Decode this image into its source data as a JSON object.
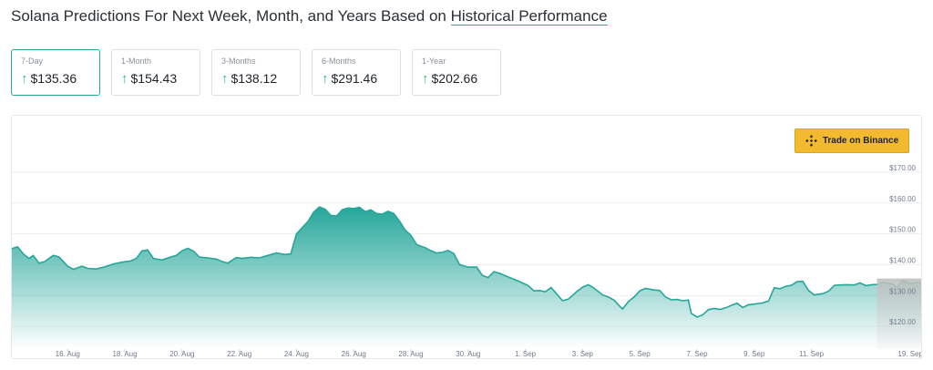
{
  "page": {
    "title_prefix": "Solana Predictions For Next Week, Month, and Years Based on ",
    "title_link": "Historical Performance"
  },
  "cards": [
    {
      "label": "7-Day",
      "value": "$135.36",
      "active": true
    },
    {
      "label": "1-Month",
      "value": "$154.43",
      "active": false
    },
    {
      "label": "3-Months",
      "value": "$138.12",
      "active": false
    },
    {
      "label": "6-Months",
      "value": "$291.46",
      "active": false
    },
    {
      "label": "1-Year",
      "value": "$202.66",
      "active": false
    }
  ],
  "trade_button": {
    "label": "Trade on Binance",
    "icon": "binance-logo-icon"
  },
  "colors": {
    "accent": "#2aa597",
    "up_arrow": "#2ebd85",
    "binance_yellow": "#f3ba2f"
  },
  "chart_data": {
    "type": "area",
    "ylim": [
      115,
      175
    ],
    "y_ticks": [
      120,
      130,
      140,
      150,
      160,
      170
    ],
    "y_tick_labels": [
      "$120.00",
      "$130.00",
      "$140.00",
      "$150.00",
      "$160.00",
      "$170.00"
    ],
    "x_ticks": [
      {
        "d": 2,
        "label": "16. Aug"
      },
      {
        "d": 4,
        "label": "18. Aug"
      },
      {
        "d": 6,
        "label": "20. Aug"
      },
      {
        "d": 8,
        "label": "22. Aug"
      },
      {
        "d": 10,
        "label": "24. Aug"
      },
      {
        "d": 12,
        "label": "26. Aug"
      },
      {
        "d": 14,
        "label": "28. Aug"
      },
      {
        "d": 16,
        "label": "30. Aug"
      },
      {
        "d": 18,
        "label": "1. Sep"
      },
      {
        "d": 20,
        "label": "3. Sep"
      },
      {
        "d": 22,
        "label": "5. Sep"
      },
      {
        "d": 24,
        "label": "7. Sep"
      },
      {
        "d": 26,
        "label": "9. Sep"
      },
      {
        "d": 28,
        "label": "11. Sep"
      },
      {
        "d": 31.9,
        "label": "19. Sep"
      }
    ],
    "x_range": [
      0.05,
      31.9
    ],
    "forecast_start": 31.5,
    "series": [
      {
        "values": [
          [
            0.05,
            145.2
          ],
          [
            0.25,
            145.8
          ],
          [
            0.45,
            143.5
          ],
          [
            0.65,
            142
          ],
          [
            0.8,
            143
          ],
          [
            1,
            140.5
          ],
          [
            1.2,
            141
          ],
          [
            1.5,
            143
          ],
          [
            1.7,
            142.5
          ],
          [
            2,
            139.5
          ],
          [
            2.2,
            138.5
          ],
          [
            2.5,
            139.5
          ],
          [
            2.7,
            138.8
          ],
          [
            3,
            138.6
          ],
          [
            3.3,
            139.3
          ],
          [
            3.6,
            140.2
          ],
          [
            3.9,
            140.8
          ],
          [
            4.2,
            141.2
          ],
          [
            4.4,
            142
          ],
          [
            4.6,
            144.5
          ],
          [
            4.8,
            144.8
          ],
          [
            5,
            142
          ],
          [
            5.3,
            141.5
          ],
          [
            5.6,
            142.5
          ],
          [
            5.8,
            143
          ],
          [
            6,
            144.5
          ],
          [
            6.2,
            145.3
          ],
          [
            6.4,
            144.4
          ],
          [
            6.6,
            142.5
          ],
          [
            6.9,
            142.2
          ],
          [
            7.2,
            141.8
          ],
          [
            7.4,
            141
          ],
          [
            7.6,
            140.5
          ],
          [
            7.9,
            142.3
          ],
          [
            8.1,
            142
          ],
          [
            8.4,
            142.4
          ],
          [
            8.7,
            142.2
          ],
          [
            9,
            143
          ],
          [
            9.3,
            143.8
          ],
          [
            9.6,
            143.3
          ],
          [
            9.8,
            143.5
          ],
          [
            10,
            150
          ],
          [
            10.2,
            152
          ],
          [
            10.4,
            154
          ],
          [
            10.6,
            157
          ],
          [
            10.8,
            158.7
          ],
          [
            11,
            158
          ],
          [
            11.2,
            156
          ],
          [
            11.4,
            155.8
          ],
          [
            11.6,
            157.8
          ],
          [
            11.8,
            158.4
          ],
          [
            12,
            158.2
          ],
          [
            12.2,
            158.6
          ],
          [
            12.4,
            157.2
          ],
          [
            12.6,
            157.8
          ],
          [
            12.8,
            156.6
          ],
          [
            13,
            156.4
          ],
          [
            13.2,
            157.3
          ],
          [
            13.4,
            156.6
          ],
          [
            13.6,
            154.2
          ],
          [
            13.8,
            151.2
          ],
          [
            14,
            149.5
          ],
          [
            14.2,
            146.5
          ],
          [
            14.5,
            145.5
          ],
          [
            14.7,
            144.5
          ],
          [
            14.9,
            143.8
          ],
          [
            15.1,
            144
          ],
          [
            15.3,
            144.6
          ],
          [
            15.5,
            143.6
          ],
          [
            15.7,
            140
          ],
          [
            16,
            139.2
          ],
          [
            16.3,
            139.2
          ],
          [
            16.5,
            136.5
          ],
          [
            16.7,
            135.8
          ],
          [
            16.9,
            137.7
          ],
          [
            17.1,
            137.2
          ],
          [
            17.4,
            136
          ],
          [
            17.8,
            134.5
          ],
          [
            18.1,
            133.2
          ],
          [
            18.3,
            131.5
          ],
          [
            18.5,
            131.6
          ],
          [
            18.7,
            131.2
          ],
          [
            18.9,
            132.6
          ],
          [
            19.1,
            130.5
          ],
          [
            19.3,
            128.3
          ],
          [
            19.5,
            128.8
          ],
          [
            19.8,
            131.3
          ],
          [
            20,
            132.7
          ],
          [
            20.2,
            133.5
          ],
          [
            20.4,
            132.4
          ],
          [
            20.7,
            130.2
          ],
          [
            20.9,
            129.5
          ],
          [
            21.1,
            128.5
          ],
          [
            21.3,
            126.5
          ],
          [
            21.4,
            125.6
          ],
          [
            21.6,
            128
          ],
          [
            21.8,
            129.5
          ],
          [
            22,
            131.5
          ],
          [
            22.2,
            132.3
          ],
          [
            22.5,
            131.8
          ],
          [
            22.7,
            131.6
          ],
          [
            22.9,
            129.5
          ],
          [
            23.1,
            128.6
          ],
          [
            23.3,
            128.7
          ],
          [
            23.5,
            128.3
          ],
          [
            23.7,
            128.5
          ],
          [
            23.8,
            124.2
          ],
          [
            24,
            123
          ],
          [
            24.2,
            123.7
          ],
          [
            24.4,
            125.4
          ],
          [
            24.6,
            125.8
          ],
          [
            24.8,
            125.5
          ],
          [
            25,
            126
          ],
          [
            25.2,
            126.8
          ],
          [
            25.4,
            127.5
          ],
          [
            25.6,
            126.1
          ],
          [
            25.8,
            127
          ],
          [
            26,
            127.2
          ],
          [
            26.3,
            127.6
          ],
          [
            26.5,
            128.2
          ],
          [
            26.7,
            132.5
          ],
          [
            26.9,
            132.2
          ],
          [
            27.1,
            133
          ],
          [
            27.3,
            133.3
          ],
          [
            27.5,
            134.5
          ],
          [
            27.7,
            134.6
          ],
          [
            27.9,
            131.6
          ],
          [
            28.1,
            130.2
          ],
          [
            28.4,
            130.6
          ],
          [
            28.6,
            131.4
          ],
          [
            28.8,
            133.3
          ],
          [
            29,
            133.4
          ],
          [
            29.2,
            133.5
          ],
          [
            29.5,
            133.4
          ],
          [
            29.7,
            134.1
          ],
          [
            29.9,
            133.2
          ],
          [
            30.1,
            133.5
          ],
          [
            30.3,
            133.6
          ],
          [
            30.5,
            134.2
          ],
          [
            30.8,
            133.8
          ],
          [
            31,
            132.8
          ],
          [
            31.2,
            134.8
          ],
          [
            31.5,
            133.9
          ],
          [
            31.7,
            134.2
          ],
          [
            31.9,
            134
          ]
        ]
      }
    ]
  }
}
